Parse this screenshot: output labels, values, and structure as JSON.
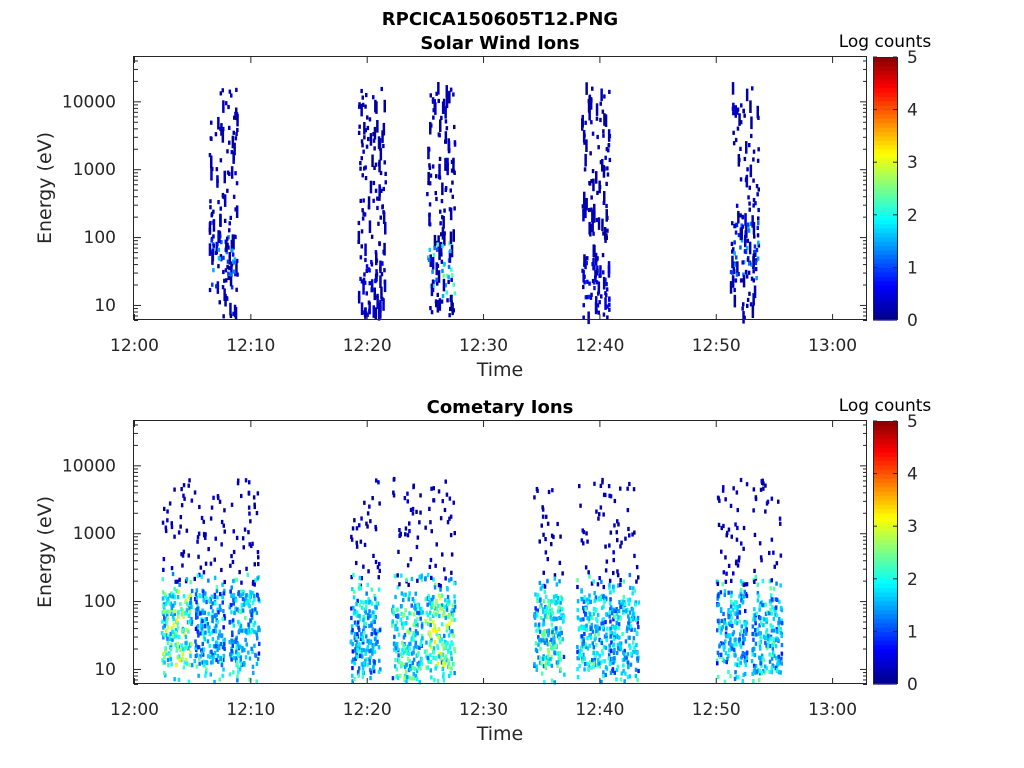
{
  "figure_title": "RPCICA150605T12.PNG",
  "colors": {
    "colormap": [
      "#00008f",
      "#0000ff",
      "#0080ff",
      "#00ffff",
      "#80ff80",
      "#ffff00",
      "#ff8000",
      "#ff0000",
      "#800000"
    ],
    "axis": "#262626"
  },
  "chart_data": [
    {
      "type": "heatmap",
      "title": "Solar Wind Ions",
      "xlabel": "Time",
      "ylabel": "Energy (eV)",
      "colorbar_label": "Log counts",
      "x_ticks": [
        "12:00",
        "12:10",
        "12:20",
        "12:30",
        "12:40",
        "12:50",
        "13:00"
      ],
      "y_ticks": [
        "10",
        "100",
        "1000",
        "10000"
      ],
      "colorbar_ticks": [
        "0",
        "1",
        "2",
        "3",
        "4",
        "5"
      ],
      "xlim_minutes": [
        0,
        63
      ],
      "ylim_eV": [
        6,
        45000
      ],
      "clim": [
        0,
        5
      ],
      "y_scale": "log",
      "bursts": [
        {
          "t": 7.6,
          "log_counts_peak": 1.6,
          "low_energy_eV": 45
        },
        {
          "t": 20.4,
          "log_counts_peak": 0.6,
          "low_energy_eV": 20
        },
        {
          "t": 26.3,
          "log_counts_peak": 2.5,
          "low_energy_eV": 30
        },
        {
          "t": 39.6,
          "log_counts_peak": 0.8,
          "low_energy_eV": 15
        },
        {
          "t": 52.4,
          "log_counts_peak": 1.5,
          "low_energy_eV": 60
        }
      ]
    },
    {
      "type": "heatmap",
      "title": "Cometary Ions",
      "xlabel": "Time",
      "ylabel": "Energy (eV)",
      "colorbar_label": "Log counts",
      "x_ticks": [
        "12:00",
        "12:10",
        "12:20",
        "12:30",
        "12:40",
        "12:50",
        "13:00"
      ],
      "y_ticks": [
        "10",
        "100",
        "1000",
        "10000"
      ],
      "colorbar_ticks": [
        "0",
        "1",
        "2",
        "3",
        "4",
        "5"
      ],
      "xlim_minutes": [
        0,
        63
      ],
      "ylim_eV": [
        6,
        45000
      ],
      "clim": [
        0,
        5
      ],
      "y_scale": "log",
      "bursts": [
        {
          "t": 3.6,
          "log_counts_peak": 3.3,
          "peak_energy_eV": 40
        },
        {
          "t": 6.4,
          "log_counts_peak": 2.2,
          "peak_energy_eV": 40
        },
        {
          "t": 9.4,
          "log_counts_peak": 2.4,
          "peak_energy_eV": 40
        },
        {
          "t": 19.8,
          "log_counts_peak": 2.2,
          "peak_energy_eV": 30
        },
        {
          "t": 23.4,
          "log_counts_peak": 2.8,
          "peak_energy_eV": 25
        },
        {
          "t": 26.2,
          "log_counts_peak": 3.4,
          "peak_energy_eV": 35
        },
        {
          "t": 35.6,
          "log_counts_peak": 2.7,
          "peak_energy_eV": 35
        },
        {
          "t": 39.3,
          "log_counts_peak": 2.5,
          "peak_energy_eV": 35
        },
        {
          "t": 42.0,
          "log_counts_peak": 2.3,
          "peak_energy_eV": 30
        },
        {
          "t": 51.3,
          "log_counts_peak": 2.2,
          "peak_energy_eV": 40
        },
        {
          "t": 54.3,
          "log_counts_peak": 2.4,
          "peak_energy_eV": 30
        }
      ]
    }
  ]
}
